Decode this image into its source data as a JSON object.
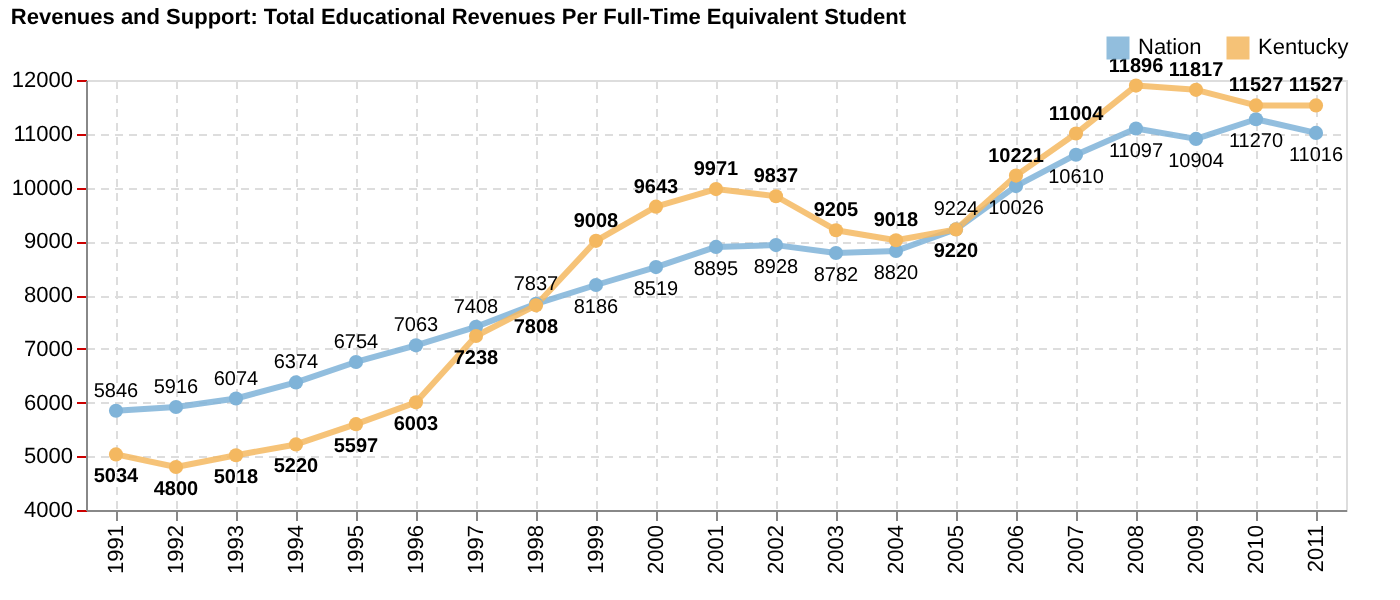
{
  "chart_data": {
    "type": "line",
    "title": "Revenues and Support: Total Educational Revenues Per Full-Time Equivalent Student",
    "categories": [
      "1991",
      "1992",
      "1993",
      "1994",
      "1995",
      "1996",
      "1997",
      "1998",
      "1999",
      "2000",
      "2001",
      "2002",
      "2003",
      "2004",
      "2005",
      "2006",
      "2007",
      "2008",
      "2009",
      "2010",
      "2011"
    ],
    "series": [
      {
        "name": "Nation",
        "color": "#7fb3d8",
        "values": [
          5846,
          5916,
          6074,
          6374,
          6754,
          7063,
          7408,
          7837,
          8186,
          8519,
          8895,
          8928,
          8782,
          8820,
          9224,
          10026,
          10610,
          11097,
          10904,
          11270,
          11016
        ]
      },
      {
        "name": "Kentucky",
        "color": "#f4b860",
        "values": [
          5034,
          4800,
          5018,
          5220,
          5597,
          6003,
          7238,
          7808,
          9008,
          9643,
          9971,
          9837,
          9205,
          9018,
          9220,
          10221,
          11004,
          11896,
          11817,
          11527,
          11527
        ]
      }
    ],
    "ylim": [
      4000,
      12000
    ],
    "yticks": [
      4000,
      5000,
      6000,
      7000,
      8000,
      9000,
      10000,
      11000,
      12000
    ],
    "grid": true,
    "legend": "top right",
    "marker": "circle",
    "line_style": "solid",
    "data_labels": true
  }
}
